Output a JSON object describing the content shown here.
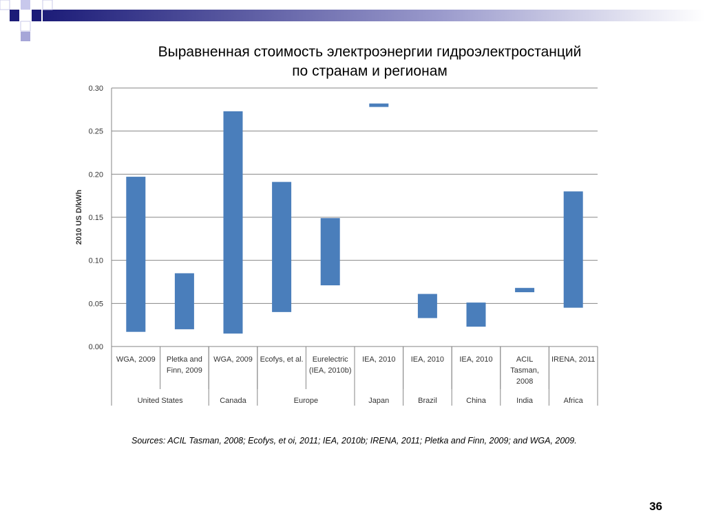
{
  "slide": {
    "title_line1": "Выравненная стоимость электроэнергии гидроэлектростанций",
    "title_line2": "по странам и регионам",
    "sources": "Sources: ACIL Tasman, 2008; Ecofys, et oi, 2011; IEA, 2010b; IRENA, 2011; Pletka and Finn, 2009; and WGA, 2009.",
    "page_number": "36"
  },
  "colors": {
    "bar": "#4a7ebb",
    "grid": "#868686",
    "decor_dark": "#1c1c78",
    "decor_light": "#a6a6d8"
  },
  "chart_data": {
    "type": "bar",
    "subtype": "floating-range",
    "ylabel": "2010 US D/kWh",
    "ylim": [
      0,
      0.3
    ],
    "yticks": [
      "0.00",
      "0.05",
      "0.10",
      "0.15",
      "0.20",
      "0.25",
      "0.30"
    ],
    "grid": true,
    "categories": [
      {
        "label": [
          "WGA, 2009"
        ],
        "low": 0.017,
        "high": 0.197
      },
      {
        "label": [
          "Pletka and",
          "Finn, 2009"
        ],
        "low": 0.02,
        "high": 0.085
      },
      {
        "label": [
          "WGA, 2009"
        ],
        "low": 0.015,
        "high": 0.273
      },
      {
        "label": [
          "Ecofys, et al."
        ],
        "low": 0.04,
        "high": 0.191
      },
      {
        "label": [
          "Eurelectric",
          "(IEA, 2010b)"
        ],
        "low": 0.071,
        "high": 0.149
      },
      {
        "label": [
          "IEA, 2010"
        ],
        "low": 0.278,
        "high": 0.282
      },
      {
        "label": [
          "IEA, 2010"
        ],
        "low": 0.033,
        "high": 0.061
      },
      {
        "label": [
          "IEA, 2010"
        ],
        "low": 0.023,
        "high": 0.051
      },
      {
        "label": [
          "ACIL",
          "Tasman,",
          "2008"
        ],
        "low": 0.063,
        "high": 0.068
      },
      {
        "label": [
          "IRENA, 2011"
        ],
        "low": 0.045,
        "high": 0.18
      }
    ],
    "groups": [
      {
        "label": "United States",
        "span": [
          0,
          1
        ]
      },
      {
        "label": "Canada",
        "span": [
          2,
          2
        ]
      },
      {
        "label": "Europe",
        "span": [
          3,
          4
        ]
      },
      {
        "label": "Japan",
        "span": [
          5,
          5
        ]
      },
      {
        "label": "Brazil",
        "span": [
          6,
          6
        ]
      },
      {
        "label": "China",
        "span": [
          7,
          7
        ]
      },
      {
        "label": "India",
        "span": [
          8,
          8
        ]
      },
      {
        "label": "Africa",
        "span": [
          9,
          9
        ]
      }
    ]
  }
}
